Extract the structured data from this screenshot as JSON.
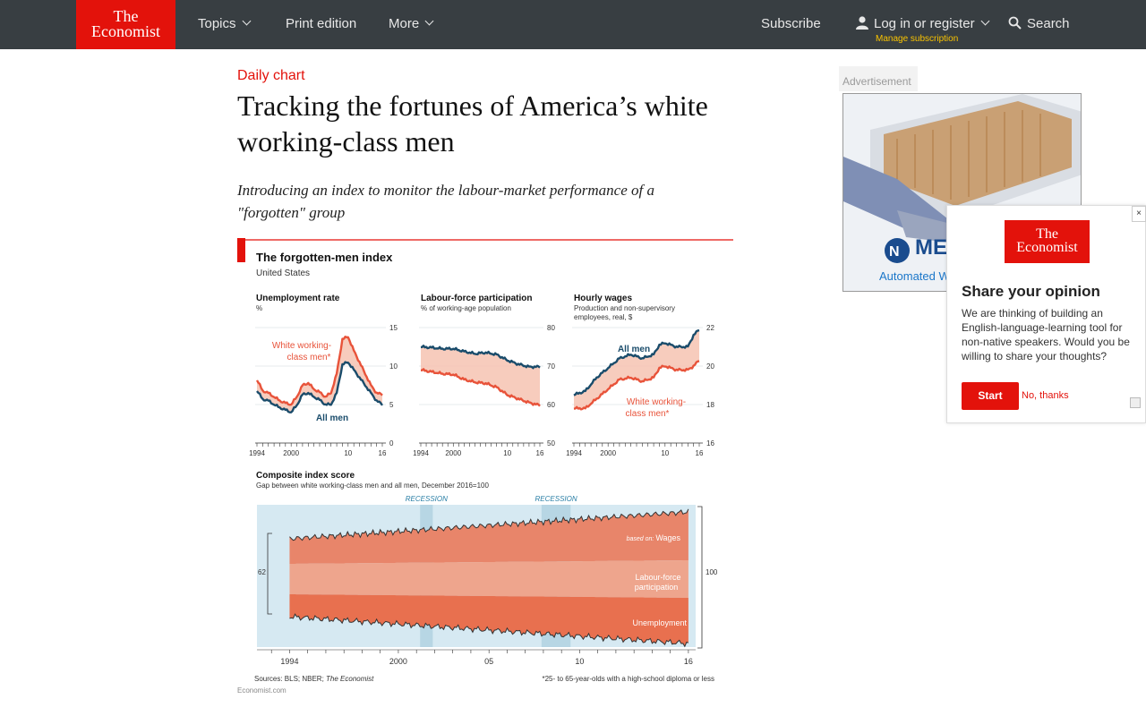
{
  "nav": {
    "logo_line1": "The",
    "logo_line2": "Economist",
    "topics": "Topics",
    "print": "Print edition",
    "more": "More",
    "subscribe": "Subscribe",
    "login": "Log in or register",
    "manage": "Manage subscription",
    "search": "Search"
  },
  "article": {
    "kicker": "Daily chart",
    "headline": "Tracking the fortunes of America’s white working-class men",
    "dek": "Introducing an index to monitor the labour-market performance of a \"forgotten\" group"
  },
  "ad": {
    "label": "Advertisement",
    "brand": "ME",
    "text": "Automated W"
  },
  "popup": {
    "logo_line1": "The",
    "logo_line2": "Economist",
    "title": "Share your opinion",
    "body": "We are thinking of building an English-language-learning tool for non-native speakers. Would you be willing to share your thoughts?",
    "start": "Start",
    "no_thanks": "No, thanks",
    "close": "×"
  },
  "chart_data": [
    {
      "type": "line",
      "title": "The forgotten-men index",
      "subtitle": "United States",
      "panel": "Unemployment rate",
      "ylabel": "%",
      "ylim": [
        0,
        15
      ],
      "yticks": [
        0,
        5,
        10,
        15
      ],
      "xticks": [
        "1994",
        "2000",
        "10",
        "16"
      ],
      "series": [
        {
          "name": "White working-class men*",
          "color": "#e8533a",
          "x": [
            1994,
            1995,
            1996,
            1997,
            1998,
            1999,
            2000,
            2001,
            2002,
            2003,
            2004,
            2005,
            2006,
            2007,
            2008,
            2009,
            2010,
            2011,
            2012,
            2013,
            2014,
            2015,
            2016
          ],
          "y": [
            8.2,
            6.8,
            6.5,
            6.0,
            5.5,
            5.2,
            5.0,
            6.0,
            7.5,
            7.8,
            7.0,
            6.6,
            6.0,
            6.5,
            9.0,
            13.5,
            13.8,
            12.0,
            10.5,
            9.0,
            7.5,
            6.5,
            6.3
          ]
        },
        {
          "name": "All men",
          "color": "#1a4c6b",
          "x": [
            1994,
            1995,
            1996,
            1997,
            1998,
            1999,
            2000,
            2001,
            2002,
            2003,
            2004,
            2005,
            2006,
            2007,
            2008,
            2009,
            2010,
            2011,
            2012,
            2013,
            2014,
            2015,
            2016
          ],
          "y": [
            6.8,
            5.7,
            5.5,
            5.0,
            4.6,
            4.3,
            4.0,
            4.9,
            6.3,
            6.5,
            6.0,
            5.6,
            5.0,
            5.0,
            6.5,
            10.2,
            10.5,
            9.5,
            8.5,
            7.5,
            6.5,
            5.5,
            5.0
          ]
        }
      ]
    },
    {
      "type": "line",
      "panel": "Labour-force participation",
      "ylabel": "% of working-age population",
      "ylim": [
        50,
        80
      ],
      "yticks": [
        50,
        60,
        70,
        80
      ],
      "xticks": [
        "1994",
        "2000",
        "10",
        "16"
      ],
      "series": [
        {
          "name": "All men",
          "color": "#1a4c6b",
          "x": [
            1994,
            1996,
            1998,
            2000,
            2002,
            2004,
            2006,
            2008,
            2010,
            2012,
            2014,
            2016
          ],
          "y": [
            75,
            74.8,
            74.5,
            74.5,
            73.8,
            73.2,
            73.5,
            73.0,
            71.5,
            70.5,
            69.8,
            69.8
          ]
        },
        {
          "name": "White working-class men*",
          "color": "#e8533a",
          "x": [
            1994,
            1996,
            1998,
            2000,
            2002,
            2004,
            2006,
            2008,
            2010,
            2012,
            2014,
            2016
          ],
          "y": [
            69,
            68.5,
            68,
            67.8,
            66.5,
            65.8,
            65.5,
            64.5,
            62.5,
            61.5,
            60.5,
            59.8
          ]
        }
      ]
    },
    {
      "type": "line",
      "panel": "Hourly wages",
      "ylabel": "Production and non-supervisory employees, real, $",
      "ylim": [
        16,
        22
      ],
      "yticks": [
        16,
        18,
        20,
        22
      ],
      "xticks": [
        "1994",
        "2000",
        "10",
        "16"
      ],
      "series": [
        {
          "name": "All men",
          "color": "#1a4c6b",
          "x": [
            1994,
            1996,
            1998,
            2000,
            2002,
            2004,
            2006,
            2008,
            2009,
            2010,
            2012,
            2014,
            2015,
            2016
          ],
          "y": [
            18.5,
            18.7,
            19.4,
            19.9,
            20.4,
            20.6,
            20.4,
            20.6,
            21.1,
            21.2,
            21.0,
            21.0,
            21.6,
            21.9
          ]
        },
        {
          "name": "White working-class men*",
          "color": "#e8533a",
          "x": [
            1994,
            1996,
            1998,
            2000,
            2002,
            2004,
            2006,
            2008,
            2009,
            2010,
            2012,
            2014,
            2015,
            2016
          ],
          "y": [
            17.8,
            17.8,
            18.3,
            18.8,
            19.3,
            19.4,
            19.2,
            19.4,
            19.9,
            20.0,
            19.8,
            19.8,
            20.0,
            20.3
          ]
        }
      ]
    },
    {
      "type": "area",
      "panel": "Composite index score",
      "ylabel": "Gap between white working-class men and all men, December 2016=100",
      "ylim": [
        62,
        100
      ],
      "xticks": [
        "1994",
        "2000",
        "05",
        "10",
        "16"
      ],
      "recessions": [
        {
          "label": "RECESSION",
          "from": 2001.2,
          "to": 2001.9
        },
        {
          "label": "RECESSION",
          "from": 2007.9,
          "to": 2009.5
        }
      ],
      "layers": [
        {
          "name": "Wages",
          "note": "based on:",
          "color": "#e8856a"
        },
        {
          "name": "Labour-force participation",
          "color": "#eea58d"
        },
        {
          "name": "Unemployment",
          "color": "#e8704f"
        }
      ],
      "left_value": "62",
      "right_value": "100"
    }
  ],
  "footer": {
    "sources_prefix": "Sources: BLS; NBER; ",
    "sources_italic": "The Economist",
    "note": "*25- to 65-year-olds with a high-school diploma or less",
    "credit": "Economist.com"
  }
}
